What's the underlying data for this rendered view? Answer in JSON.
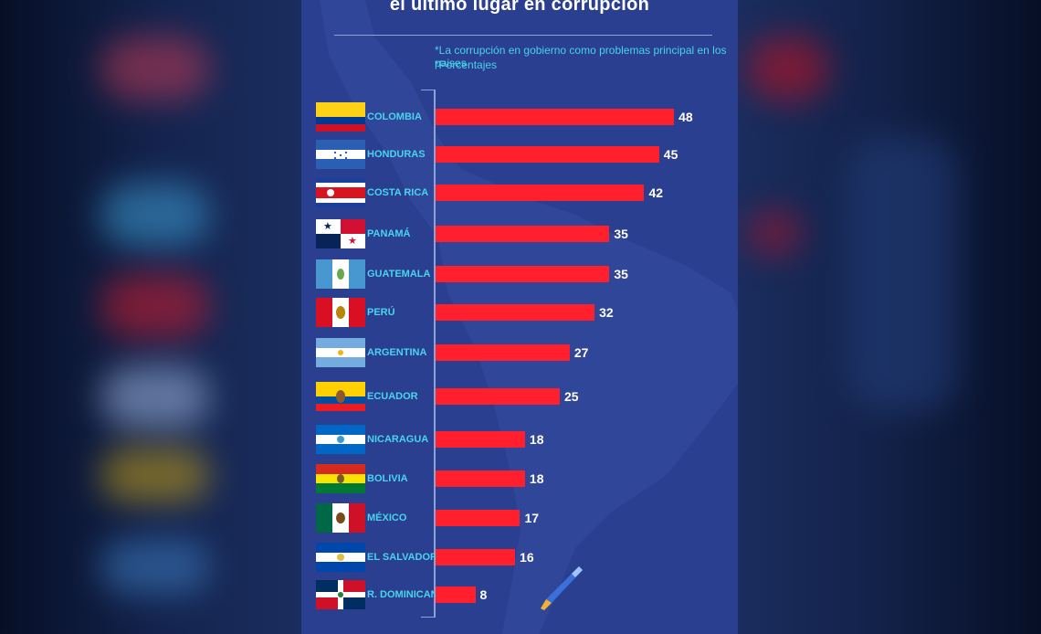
{
  "header": {
    "title": "el último lugar en corrupción",
    "note_line1": "*La corrupción en gobierno como problemas principal en los paises",
    "note_line2": "*Porcentajes"
  },
  "colors": {
    "panel": "#2a3f8f",
    "bar": "#ff1f2d",
    "label": "#49d4ee",
    "value": "#ffffff"
  },
  "chart_data": {
    "type": "bar",
    "orientation": "horizontal",
    "title": "el último lugar en corrupción",
    "xlabel": "",
    "ylabel": "",
    "xlim": [
      0,
      50
    ],
    "grid": false,
    "categories": [
      "COLOMBIA",
      "HONDURAS",
      "COSTA RICA",
      "PANAMÁ",
      "GUATEMALA",
      "PERÚ",
      "ARGENTINA",
      "ECUADOR",
      "NICARAGUA",
      "BOLIVIA",
      "MÉXICO",
      "EL SALVADOR",
      "R. DOMINICANA"
    ],
    "values": [
      48,
      45,
      42,
      35,
      35,
      32,
      27,
      25,
      18,
      18,
      17,
      16,
      8
    ],
    "labels": [
      "48",
      "45",
      "42",
      "35",
      "35",
      "32",
      "27",
      "25",
      "18",
      "18",
      "17",
      "16",
      "8"
    ],
    "flag_icons": [
      "colombia-flag-icon",
      "honduras-flag-icon",
      "costa-rica-flag-icon",
      "panama-flag-icon",
      "guatemala-flag-icon",
      "peru-flag-icon",
      "argentina-flag-icon",
      "ecuador-flag-icon",
      "nicaragua-flag-icon",
      "bolivia-flag-icon",
      "mexico-flag-icon",
      "el-salvador-flag-icon",
      "dominican-republic-flag-icon"
    ]
  }
}
